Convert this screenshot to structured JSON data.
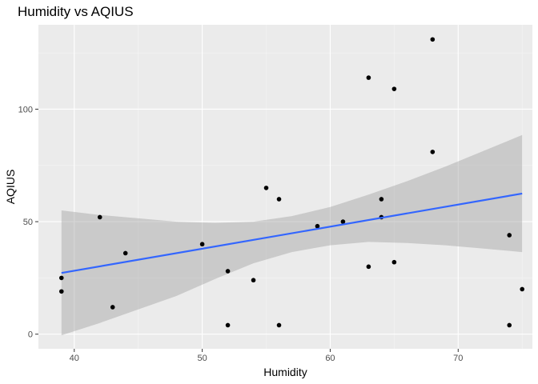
{
  "chart_data": {
    "type": "scatter",
    "title": "Humidity vs AQIUS",
    "xlabel": "Humidity",
    "ylabel": "AQIUS",
    "xlim": [
      37.2,
      75.8
    ],
    "ylim": [
      -6.5,
      137.5
    ],
    "x_ticks": [
      40,
      50,
      60,
      70
    ],
    "y_ticks": [
      0,
      50,
      100
    ],
    "x_tick_labels": [
      "40",
      "50",
      "60",
      "70"
    ],
    "y_tick_labels": [
      "0",
      "50",
      "100"
    ],
    "x_minor_ticks": [
      45,
      55,
      65,
      75
    ],
    "y_minor_ticks": [
      25,
      75,
      125
    ],
    "grid": true,
    "legend": "none",
    "points": [
      {
        "x": 39,
        "y": 25
      },
      {
        "x": 39,
        "y": 19
      },
      {
        "x": 42,
        "y": 52
      },
      {
        "x": 43,
        "y": 12
      },
      {
        "x": 44,
        "y": 36
      },
      {
        "x": 50,
        "y": 40
      },
      {
        "x": 52,
        "y": 28
      },
      {
        "x": 52,
        "y": 4
      },
      {
        "x": 54,
        "y": 24
      },
      {
        "x": 55,
        "y": 65
      },
      {
        "x": 56,
        "y": 60
      },
      {
        "x": 56,
        "y": 4
      },
      {
        "x": 59,
        "y": 48
      },
      {
        "x": 61,
        "y": 50
      },
      {
        "x": 63,
        "y": 114
      },
      {
        "x": 63,
        "y": 30
      },
      {
        "x": 64,
        "y": 60
      },
      {
        "x": 64,
        "y": 52
      },
      {
        "x": 65,
        "y": 109
      },
      {
        "x": 65,
        "y": 32
      },
      {
        "x": 68,
        "y": 131
      },
      {
        "x": 68,
        "y": 81
      },
      {
        "x": 74,
        "y": 44
      },
      {
        "x": 74,
        "y": 4
      },
      {
        "x": 75,
        "y": 20
      }
    ],
    "trend_line": {
      "x": [
        39,
        75
      ],
      "y": [
        27.2,
        62.5
      ]
    },
    "confidence_band": {
      "x": [
        39,
        42,
        45,
        48,
        51,
        54,
        57,
        60,
        63,
        66,
        69,
        72,
        75
      ],
      "upper": [
        55.0,
        53.0,
        51.5,
        50.0,
        49.5,
        50.0,
        52.5,
        56.5,
        62.0,
        68.0,
        74.5,
        81.5,
        88.5
      ],
      "lower": [
        -0.5,
        5.0,
        11.0,
        17.0,
        24.5,
        31.5,
        36.5,
        39.5,
        41.0,
        40.5,
        39.5,
        38.0,
        36.5
      ]
    },
    "colors": {
      "panel": "#ebebeb",
      "grid_major": "#ffffff",
      "points": "#000000",
      "trend": "#3366ff",
      "band": "#999999"
    }
  }
}
